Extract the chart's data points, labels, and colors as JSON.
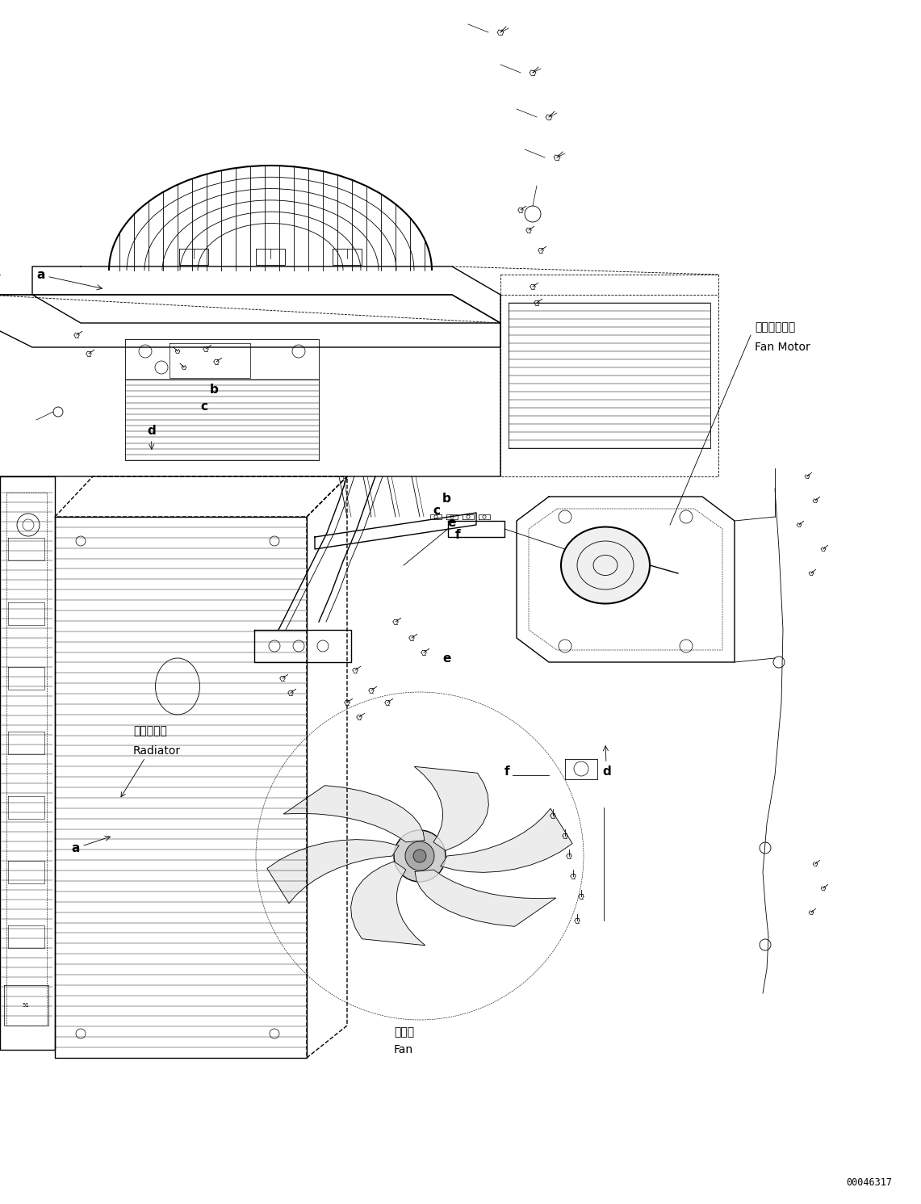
{
  "bg_color": "#ffffff",
  "line_color": "#000000",
  "fig_width": 11.41,
  "fig_height": 14.91,
  "dpi": 100,
  "part_number": "00046317",
  "labels": {
    "fan_motor_jp": "ファンモータ",
    "fan_motor_en": "Fan Motor",
    "radiator_jp": "ラジエータ",
    "radiator_en": "Radiator",
    "fan_jp": "ファン",
    "fan_en": "Fan"
  }
}
